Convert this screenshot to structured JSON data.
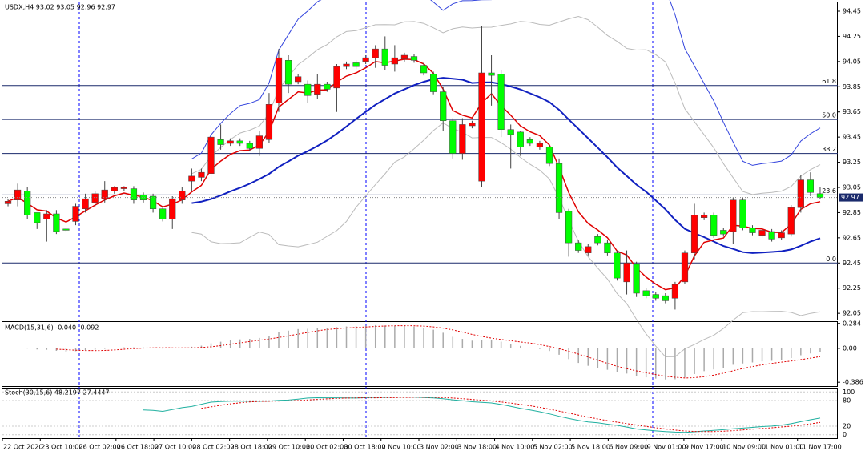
{
  "chart_data": {
    "type": "candlestick",
    "title": "USDX,H4  93.02 93.05 92.96 92.97",
    "last_price": {
      "value": 92.97,
      "label": "92.97"
    },
    "ylim": [
      92.0,
      94.52
    ],
    "yticks": [
      {
        "value": 94.45,
        "label": "94.45"
      },
      {
        "value": 94.25,
        "label": "94.25"
      },
      {
        "value": 94.05,
        "label": "94.05"
      },
      {
        "value": 93.85,
        "label": "93.85"
      },
      {
        "value": 93.65,
        "label": "93.65"
      },
      {
        "value": 93.45,
        "label": "93.45"
      },
      {
        "value": 93.25,
        "label": "93.25"
      },
      {
        "value": 93.05,
        "label": "93.05"
      },
      {
        "value": 92.85,
        "label": "92.85"
      },
      {
        "value": 92.65,
        "label": "92.65"
      },
      {
        "value": 92.45,
        "label": "92.45"
      },
      {
        "value": 92.25,
        "label": "92.25"
      },
      {
        "value": 92.05,
        "label": "92.05"
      }
    ],
    "fib_levels": [
      {
        "label": "61.8",
        "value": 93.86
      },
      {
        "label": "50.0",
        "value": 93.59
      },
      {
        "label": "38.2",
        "value": 93.32
      },
      {
        "label": "23.6",
        "value": 92.99
      },
      {
        "label": "0.0",
        "value": 92.45
      }
    ],
    "up_color": "#ff0000",
    "down_color": "#00ff00",
    "candles": [
      [
        92.92,
        92.96,
        92.9,
        92.94
      ],
      [
        92.95,
        93.08,
        92.9,
        93.03
      ],
      [
        93.02,
        93.05,
        92.8,
        92.83
      ],
      [
        92.85,
        92.85,
        92.72,
        92.77
      ],
      [
        92.8,
        92.87,
        92.62,
        92.84
      ],
      [
        92.84,
        92.87,
        92.68,
        92.7
      ],
      [
        92.72,
        92.73,
        92.7,
        92.71
      ],
      [
        92.78,
        92.92,
        92.75,
        92.9
      ],
      [
        92.88,
        93.0,
        92.85,
        92.96
      ],
      [
        92.93,
        93.02,
        92.9,
        93.0
      ],
      [
        92.96,
        93.1,
        92.93,
        93.03
      ],
      [
        93.02,
        93.06,
        93.0,
        93.05
      ],
      [
        93.04,
        93.06,
        93.02,
        93.05
      ],
      [
        93.04,
        93.06,
        92.92,
        92.95
      ],
      [
        92.99,
        93.01,
        92.93,
        92.95
      ],
      [
        92.98,
        93.0,
        92.85,
        92.88
      ],
      [
        92.88,
        92.9,
        92.78,
        92.8
      ],
      [
        92.8,
        92.98,
        92.72,
        92.96
      ],
      [
        92.95,
        93.05,
        92.92,
        93.02
      ],
      [
        93.1,
        93.2,
        93.02,
        93.14
      ],
      [
        93.13,
        93.2,
        93.1,
        93.17
      ],
      [
        93.16,
        93.5,
        93.12,
        93.45
      ],
      [
        93.43,
        93.55,
        93.35,
        93.39
      ],
      [
        93.4,
        93.44,
        93.38,
        93.42
      ],
      [
        93.42,
        93.44,
        93.38,
        93.4
      ],
      [
        93.4,
        93.42,
        93.34,
        93.36
      ],
      [
        93.36,
        93.5,
        93.3,
        93.46
      ],
      [
        93.43,
        93.8,
        93.4,
        93.71
      ],
      [
        93.72,
        94.15,
        93.65,
        94.08
      ],
      [
        94.06,
        94.1,
        93.8,
        93.87
      ],
      [
        93.89,
        93.95,
        93.87,
        93.93
      ],
      [
        93.87,
        93.9,
        93.72,
        93.78
      ],
      [
        93.79,
        93.95,
        93.75,
        93.87
      ],
      [
        93.87,
        93.89,
        93.81,
        93.83
      ],
      [
        93.84,
        94.03,
        93.65,
        94.01
      ],
      [
        94.01,
        94.05,
        93.99,
        94.03
      ],
      [
        94.04,
        94.06,
        93.99,
        94.01
      ],
      [
        94.05,
        94.1,
        94.03,
        94.08
      ],
      [
        94.08,
        94.18,
        94.0,
        94.15
      ],
      [
        94.15,
        94.25,
        93.98,
        94.02
      ],
      [
        94.03,
        94.18,
        93.97,
        94.08
      ],
      [
        94.07,
        94.12,
        94.05,
        94.1
      ],
      [
        94.09,
        94.11,
        94.04,
        94.06
      ],
      [
        94.02,
        94.04,
        93.94,
        93.96
      ],
      [
        93.95,
        93.97,
        93.79,
        93.81
      ],
      [
        93.81,
        93.85,
        93.5,
        93.58
      ],
      [
        93.58,
        93.6,
        93.28,
        93.32
      ],
      [
        93.32,
        93.6,
        93.27,
        93.55
      ],
      [
        93.54,
        93.58,
        93.52,
        93.56
      ],
      [
        93.1,
        94.33,
        93.05,
        93.96
      ],
      [
        93.96,
        94.1,
        93.7,
        93.94
      ],
      [
        93.95,
        93.98,
        93.45,
        93.51
      ],
      [
        93.51,
        93.55,
        93.2,
        93.47
      ],
      [
        93.49,
        93.5,
        93.3,
        93.37
      ],
      [
        93.43,
        93.45,
        93.38,
        93.4
      ],
      [
        93.37,
        93.42,
        93.35,
        93.4
      ],
      [
        93.37,
        93.39,
        93.22,
        93.24
      ],
      [
        93.24,
        93.28,
        92.8,
        92.85
      ],
      [
        92.86,
        92.88,
        92.5,
        92.61
      ],
      [
        92.61,
        92.63,
        92.53,
        92.55
      ],
      [
        92.53,
        92.6,
        92.51,
        92.58
      ],
      [
        92.66,
        92.68,
        92.59,
        92.61
      ],
      [
        92.61,
        92.63,
        92.51,
        92.53
      ],
      [
        92.53,
        92.55,
        92.31,
        92.33
      ],
      [
        92.3,
        92.55,
        92.2,
        92.45
      ],
      [
        92.44,
        92.46,
        92.18,
        92.21
      ],
      [
        92.23,
        92.25,
        92.17,
        92.19
      ],
      [
        92.2,
        92.22,
        92.15,
        92.17
      ],
      [
        92.19,
        92.21,
        92.13,
        92.15
      ],
      [
        92.17,
        92.3,
        92.08,
        92.28
      ],
      [
        92.3,
        92.55,
        92.28,
        92.53
      ],
      [
        92.53,
        92.92,
        92.48,
        92.83
      ],
      [
        92.81,
        92.85,
        92.79,
        92.83
      ],
      [
        92.83,
        92.85,
        92.65,
        92.67
      ],
      [
        92.71,
        92.73,
        92.66,
        92.68
      ],
      [
        92.7,
        92.97,
        92.6,
        92.95
      ],
      [
        92.95,
        92.97,
        92.71,
        92.73
      ],
      [
        92.73,
        92.75,
        92.67,
        92.69
      ],
      [
        92.67,
        92.73,
        92.65,
        92.71
      ],
      [
        92.7,
        92.72,
        92.62,
        92.64
      ],
      [
        92.65,
        92.71,
        92.63,
        92.69
      ],
      [
        92.68,
        92.91,
        92.66,
        92.89
      ],
      [
        92.89,
        93.15,
        92.85,
        93.11
      ],
      [
        93.11,
        93.17,
        92.98,
        93.01
      ],
      [
        93.0,
        93.05,
        92.96,
        92.97
      ]
    ],
    "macd": {
      "title": "MACD(15,31,6) -0.040 -0.092",
      "ylim": [
        -0.43,
        0.3
      ],
      "yticks": [
        {
          "value": 0.284,
          "label": "0.284"
        },
        {
          "value": 0,
          "label": "0.00"
        },
        {
          "value": -0.386,
          "label": "-0.386"
        }
      ]
    },
    "stoch": {
      "title": "Stoch(30,15,6) 48.2197 27.4447",
      "ylim": [
        -8,
        108
      ],
      "yticks": [
        100,
        80,
        20,
        0
      ]
    },
    "x_labels": [
      "22 Oct 2020",
      "23 Oct 10:00",
      "26 Oct 02:00",
      "26 Oct 18:00",
      "27 Oct 10:00",
      "28 Oct 02:00",
      "28 Oct 18:00",
      "29 Oct 10:00",
      "30 Oct 02:00",
      "30 Oct 18:00",
      "2 Nov 10:00",
      "3 Nov 02:00",
      "3 Nov 18:00",
      "4 Nov 10:00",
      "5 Nov 02:00",
      "5 Nov 18:00",
      "6 Nov 09:00",
      "9 Nov 01:00",
      "9 Nov 17:00",
      "10 Nov 09:00",
      "11 Nov 01:00",
      "11 Nov 17:00"
    ]
  }
}
